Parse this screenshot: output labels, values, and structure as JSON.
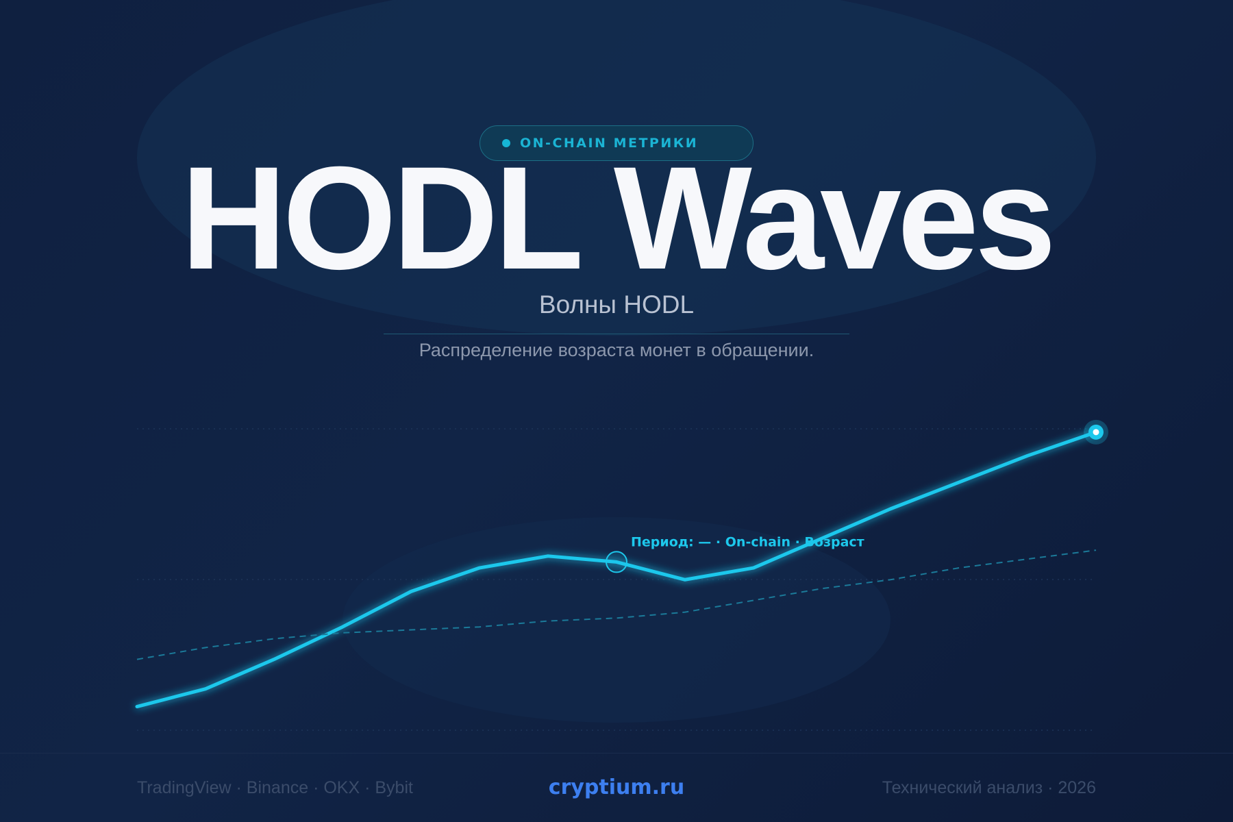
{
  "badge": {
    "label": "ON-CHAIN МЕТРИКИ"
  },
  "title": "HODL Waves",
  "subtitle": "Волны HODL",
  "description": "Распределение возраста монет в обращении.",
  "chart_data": {
    "type": "line",
    "x": [
      1,
      2,
      3,
      4,
      5,
      6,
      7,
      8,
      9,
      10,
      11,
      12,
      13,
      14,
      15
    ],
    "series": [
      {
        "values": [
          8,
          14,
          24,
          35,
          47,
          55,
          59,
          57,
          51,
          55,
          65,
          75,
          84,
          93,
          101
        ],
        "style": "solid"
      },
      {
        "values": [
          24,
          28,
          31,
          33,
          34,
          35,
          37,
          38,
          40,
          44,
          48,
          51,
          55,
          58,
          61
        ],
        "style": "dashed"
      }
    ],
    "ylim": [
      0,
      107
    ],
    "grid": true,
    "annotation": {
      "text": "Период: — · On-chain · Возраст",
      "point_index": 7
    },
    "colors": {
      "primary": "#1dc8ec",
      "secondary": "#1b7a99",
      "grid": "#1d3458"
    }
  },
  "footer": {
    "left": "TradingView · Binance · OKX · Bybit",
    "center": "cryptium.ru",
    "right": "Технический анализ · 2026"
  }
}
